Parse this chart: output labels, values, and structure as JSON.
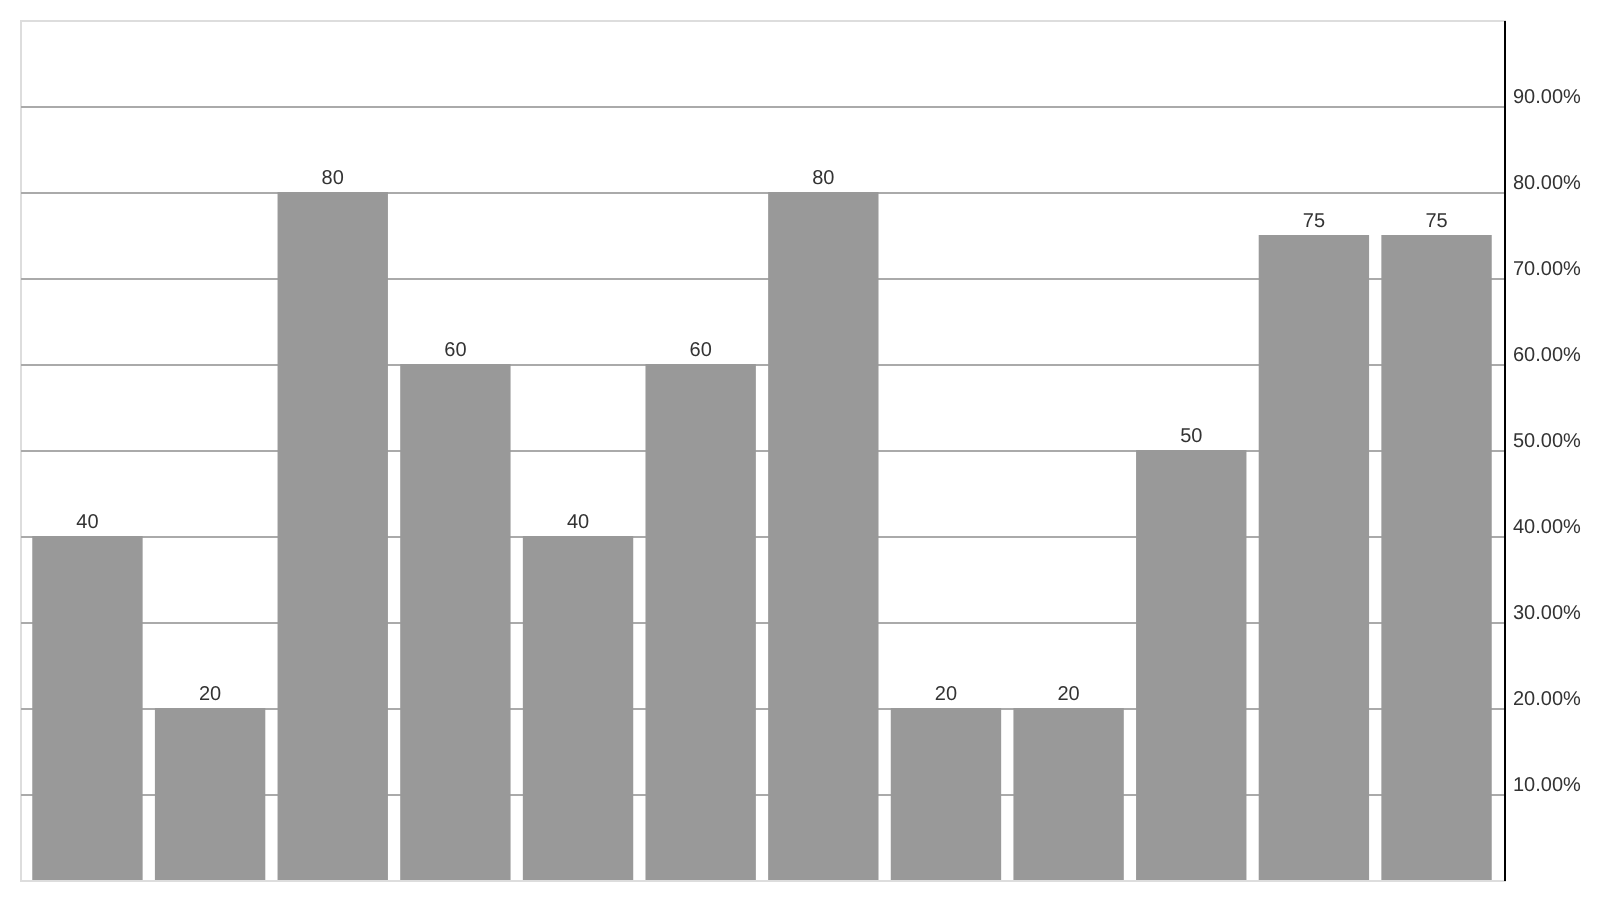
{
  "chart_data": {
    "type": "bar",
    "categories": [
      null,
      null,
      null,
      null,
      null,
      null,
      null,
      null,
      null,
      null,
      null,
      null
    ],
    "values": [
      40,
      20,
      80,
      60,
      40,
      60,
      80,
      20,
      20,
      50,
      75,
      75
    ],
    "color": "#999999",
    "ylim": [
      0,
      100
    ],
    "yticks": [
      {
        "value": 10,
        "label": "10.00%"
      },
      {
        "value": 20,
        "label": "20.00%"
      },
      {
        "value": 30,
        "label": "30.00%"
      },
      {
        "value": 40,
        "label": "40.00%"
      },
      {
        "value": 50,
        "label": "50.00%"
      },
      {
        "value": 60,
        "label": "60.00%"
      },
      {
        "value": 70,
        "label": "70.00%"
      },
      {
        "value": 80,
        "label": "80.00%"
      },
      {
        "value": 90,
        "label": "90.00%"
      }
    ],
    "grid": "y",
    "data_labels": true,
    "tick_labels": "y"
  }
}
